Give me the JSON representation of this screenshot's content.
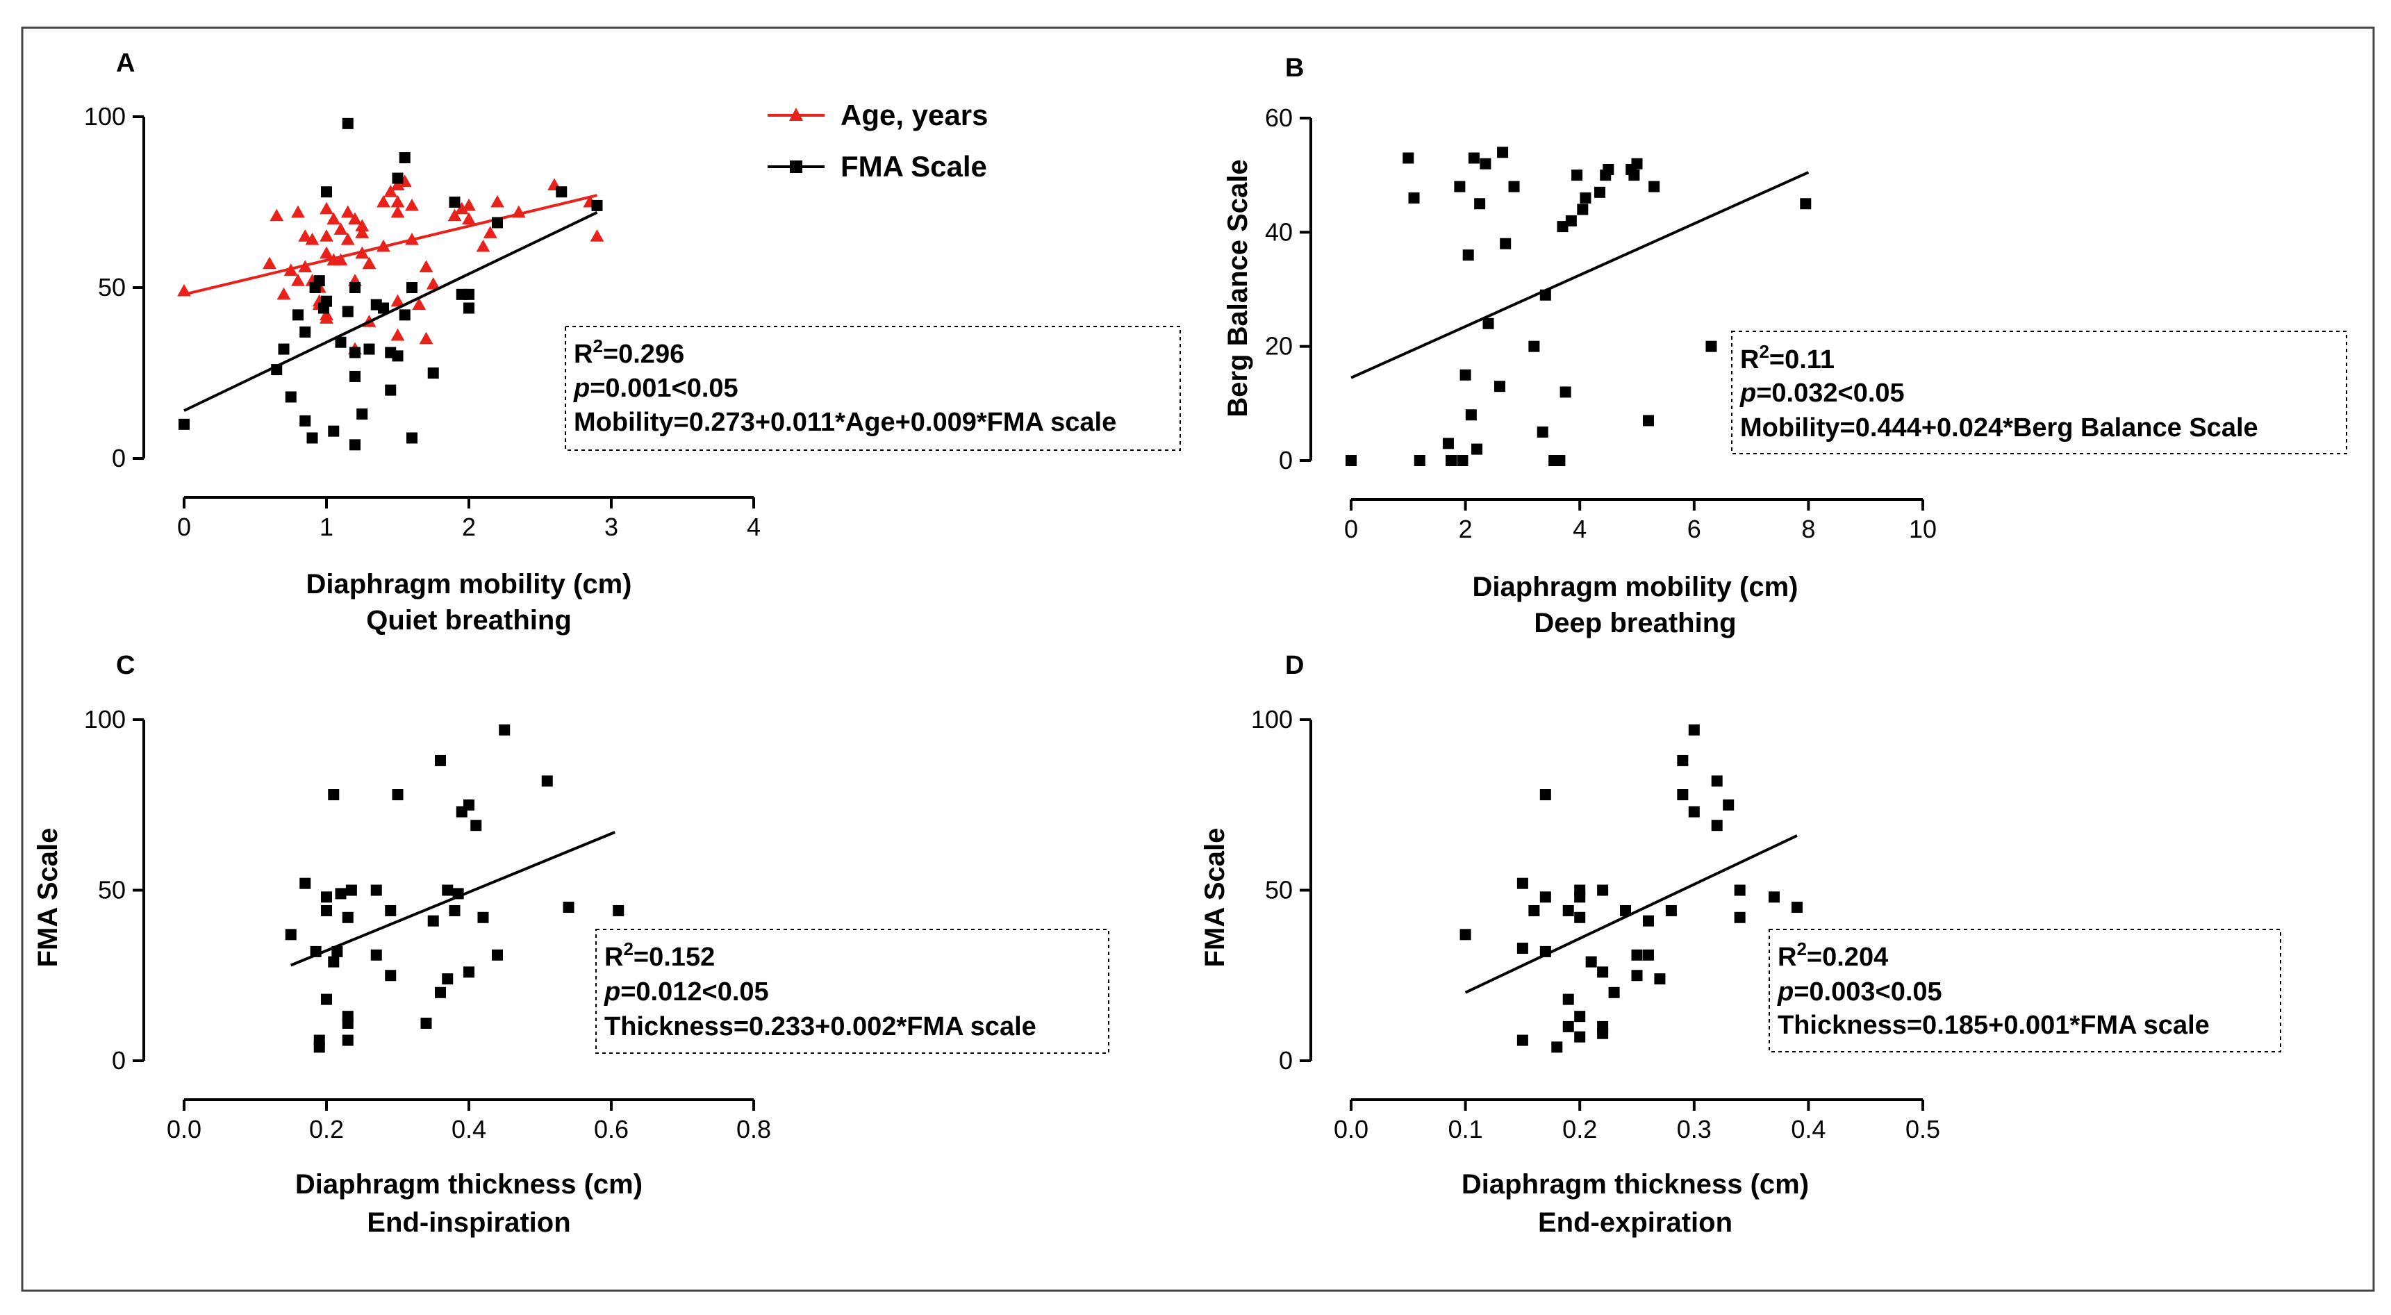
{
  "colors": {
    "red_series": "#e8211b",
    "black_series": "#000000",
    "frame": "#444444"
  },
  "chart_data": [
    {
      "type": "scatter",
      "panel_label": "A",
      "xlabel": "Diaphragm mobility (cm)",
      "xlabel_sub": "Quiet breathing",
      "ylabel": "",
      "xlim": [
        0,
        4
      ],
      "ylim": [
        0,
        100
      ],
      "xticks": [
        "0",
        "1",
        "2",
        "3",
        "4"
      ],
      "xtick_values": [
        0,
        1,
        2,
        3,
        4
      ],
      "yticks": [
        "0",
        "50",
        "100"
      ],
      "ytick_values": [
        0,
        50,
        100
      ],
      "legend": {
        "position": "top-center",
        "entries": [
          "Age, years",
          "FMA Scale"
        ]
      },
      "stats": {
        "r2_label": "R",
        "r2_sup": "2",
        "r2_value": "=0.296",
        "p_italic": "p",
        "p_rest": "=0.001<0.05",
        "equation": "Mobility=0.273+0.011*Age+0.009*FMA scale"
      },
      "series": [
        {
          "name": "Age, years",
          "marker": "triangle",
          "color": "#e8211b",
          "fit": [
            [
              0,
              48
            ],
            [
              2.9,
              77
            ]
          ],
          "points": [
            [
              0,
              49
            ],
            [
              0.6,
              57
            ],
            [
              0.65,
              71
            ],
            [
              0.7,
              48
            ],
            [
              0.75,
              55
            ],
            [
              0.8,
              52
            ],
            [
              0.8,
              72
            ],
            [
              0.85,
              65
            ],
            [
              0.85,
              56
            ],
            [
              0.9,
              64
            ],
            [
              0.9,
              52
            ],
            [
              0.95,
              50
            ],
            [
              0.95,
              46
            ],
            [
              0.95,
              45
            ],
            [
              1.0,
              42
            ],
            [
              1.0,
              41
            ],
            [
              1.0,
              65
            ],
            [
              1.0,
              73
            ],
            [
              1.0,
              60
            ],
            [
              1.05,
              70
            ],
            [
              1.05,
              58
            ],
            [
              1.1,
              58
            ],
            [
              1.1,
              67
            ],
            [
              1.15,
              64
            ],
            [
              1.15,
              72
            ],
            [
              1.2,
              70
            ],
            [
              1.2,
              52
            ],
            [
              1.2,
              32
            ],
            [
              1.25,
              66
            ],
            [
              1.25,
              68
            ],
            [
              1.25,
              60
            ],
            [
              1.3,
              57
            ],
            [
              1.3,
              40
            ],
            [
              1.4,
              75
            ],
            [
              1.4,
              62
            ],
            [
              1.45,
              78
            ],
            [
              1.5,
              72
            ],
            [
              1.5,
              80
            ],
            [
              1.5,
              75
            ],
            [
              1.5,
              36
            ],
            [
              1.5,
              46
            ],
            [
              1.55,
              81
            ],
            [
              1.6,
              74
            ],
            [
              1.6,
              64
            ],
            [
              1.65,
              45
            ],
            [
              1.7,
              56
            ],
            [
              1.7,
              35
            ],
            [
              1.75,
              51
            ],
            [
              1.9,
              71
            ],
            [
              1.95,
              73
            ],
            [
              2.0,
              74
            ],
            [
              2.0,
              70
            ],
            [
              2.1,
              62
            ],
            [
              2.15,
              66
            ],
            [
              2.2,
              75
            ],
            [
              2.35,
              72
            ],
            [
              2.6,
              80
            ],
            [
              2.85,
              75
            ],
            [
              2.9,
              65
            ]
          ]
        },
        {
          "name": "FMA Scale",
          "marker": "square",
          "color": "#000000",
          "fit": [
            [
              0,
              14
            ],
            [
              2.9,
              72
            ]
          ],
          "points": [
            [
              0,
              10
            ],
            [
              0.65,
              26
            ],
            [
              0.7,
              32
            ],
            [
              0.75,
              18
            ],
            [
              0.8,
              42
            ],
            [
              0.85,
              11
            ],
            [
              0.85,
              37
            ],
            [
              0.9,
              6
            ],
            [
              0.92,
              50
            ],
            [
              0.95,
              52
            ],
            [
              0.98,
              44
            ],
            [
              1.0,
              46
            ],
            [
              1.0,
              78
            ],
            [
              1.05,
              8
            ],
            [
              1.1,
              34
            ],
            [
              1.15,
              43
            ],
            [
              1.15,
              98
            ],
            [
              1.2,
              4
            ],
            [
              1.2,
              31
            ],
            [
              1.2,
              24
            ],
            [
              1.2,
              50
            ],
            [
              1.25,
              13
            ],
            [
              1.3,
              32
            ],
            [
              1.35,
              45
            ],
            [
              1.4,
              44
            ],
            [
              1.45,
              20
            ],
            [
              1.45,
              31
            ],
            [
              1.5,
              30
            ],
            [
              1.5,
              82
            ],
            [
              1.55,
              88
            ],
            [
              1.55,
              42
            ],
            [
              1.6,
              6
            ],
            [
              1.6,
              50
            ],
            [
              1.75,
              25
            ],
            [
              1.9,
              75
            ],
            [
              1.95,
              48
            ],
            [
              2.0,
              48
            ],
            [
              2.0,
              44
            ],
            [
              2.2,
              69
            ],
            [
              2.65,
              78
            ],
            [
              2.9,
              74
            ]
          ]
        }
      ]
    },
    {
      "type": "scatter",
      "panel_label": "B",
      "xlabel": "Diaphragm mobility (cm)",
      "xlabel_sub": "Deep breathing",
      "ylabel": "Berg Balance Scale",
      "xlim": [
        0,
        10
      ],
      "ylim": [
        0,
        60
      ],
      "xticks": [
        "0",
        "2",
        "4",
        "6",
        "8",
        "10"
      ],
      "xtick_values": [
        0,
        2,
        4,
        6,
        8,
        10
      ],
      "yticks": [
        "0",
        "20",
        "40",
        "60"
      ],
      "ytick_values": [
        0,
        20,
        40,
        60
      ],
      "stats": {
        "r2_label": "R",
        "r2_sup": "2",
        "r2_value": "=0.11",
        "p_italic": "p",
        "p_rest": "=0.032<0.05",
        "equation": "Mobility=0.444+0.024*Berg Balance Scale"
      },
      "series": [
        {
          "name": "",
          "marker": "square",
          "color": "#000000",
          "fit": [
            [
              0,
              14.5
            ],
            [
              8,
              50.5
            ]
          ],
          "points": [
            [
              0,
              0
            ],
            [
              1,
              53
            ],
            [
              1.1,
              46
            ],
            [
              1.2,
              0
            ],
            [
              1.7,
              3
            ],
            [
              1.75,
              0
            ],
            [
              1.9,
              48
            ],
            [
              1.95,
              0
            ],
            [
              2.0,
              15
            ],
            [
              2.05,
              36
            ],
            [
              2.1,
              8
            ],
            [
              2.15,
              53
            ],
            [
              2.2,
              2
            ],
            [
              2.25,
              45
            ],
            [
              2.35,
              52
            ],
            [
              2.4,
              24
            ],
            [
              2.6,
              13
            ],
            [
              2.65,
              54
            ],
            [
              2.7,
              38
            ],
            [
              2.85,
              48
            ],
            [
              3.2,
              20
            ],
            [
              3.35,
              5
            ],
            [
              3.4,
              29
            ],
            [
              3.55,
              0
            ],
            [
              3.65,
              0
            ],
            [
              3.7,
              41
            ],
            [
              3.75,
              12
            ],
            [
              3.85,
              42
            ],
            [
              3.95,
              50
            ],
            [
              4.05,
              44
            ],
            [
              4.1,
              46
            ],
            [
              4.35,
              47
            ],
            [
              4.45,
              50
            ],
            [
              4.5,
              51
            ],
            [
              4.9,
              51
            ],
            [
              4.95,
              50
            ],
            [
              5.0,
              52
            ],
            [
              5.2,
              7
            ],
            [
              5.3,
              48
            ],
            [
              6.3,
              20
            ],
            [
              7.95,
              45
            ]
          ]
        }
      ]
    },
    {
      "type": "scatter",
      "panel_label": "C",
      "xlabel": "Diaphragm thickness (cm)",
      "xlabel_sub": "End-inspiration",
      "ylabel": "FMA Scale",
      "xlim": [
        0,
        0.8
      ],
      "ylim": [
        0,
        100
      ],
      "xticks": [
        "0.0",
        "0.2",
        "0.4",
        "0.6",
        "0.8"
      ],
      "xtick_values": [
        0,
        0.2,
        0.4,
        0.6,
        0.8
      ],
      "yticks": [
        "0",
        "50",
        "100"
      ],
      "ytick_values": [
        0,
        50,
        100
      ],
      "stats": {
        "r2_label": "R",
        "r2_sup": "2",
        "r2_value": "=0.152",
        "p_italic": "p",
        "p_rest": "=0.012<0.05",
        "equation": "Thickness=0.233+0.002*FMA scale"
      },
      "series": [
        {
          "name": "",
          "marker": "square",
          "color": "#000000",
          "fit": [
            [
              0.15,
              28
            ],
            [
              0.605,
              67
            ]
          ],
          "points": [
            [
              0.15,
              37
            ],
            [
              0.17,
              52
            ],
            [
              0.185,
              32
            ],
            [
              0.19,
              4
            ],
            [
              0.19,
              6
            ],
            [
              0.2,
              18
            ],
            [
              0.2,
              44
            ],
            [
              0.2,
              48
            ],
            [
              0.21,
              29
            ],
            [
              0.21,
              78
            ],
            [
              0.215,
              32
            ],
            [
              0.22,
              49
            ],
            [
              0.23,
              6
            ],
            [
              0.23,
              11
            ],
            [
              0.23,
              13
            ],
            [
              0.23,
              42
            ],
            [
              0.235,
              50
            ],
            [
              0.27,
              50
            ],
            [
              0.27,
              31
            ],
            [
              0.29,
              44
            ],
            [
              0.29,
              25
            ],
            [
              0.3,
              78
            ],
            [
              0.34,
              11
            ],
            [
              0.35,
              41
            ],
            [
              0.36,
              88
            ],
            [
              0.36,
              20
            ],
            [
              0.37,
              50
            ],
            [
              0.37,
              24
            ],
            [
              0.38,
              44
            ],
            [
              0.385,
              49
            ],
            [
              0.39,
              73
            ],
            [
              0.4,
              75
            ],
            [
              0.4,
              26
            ],
            [
              0.41,
              69
            ],
            [
              0.42,
              42
            ],
            [
              0.44,
              31
            ],
            [
              0.45,
              97
            ],
            [
              0.51,
              82
            ],
            [
              0.54,
              45
            ],
            [
              0.61,
              44
            ]
          ]
        }
      ]
    },
    {
      "type": "scatter",
      "panel_label": "D",
      "xlabel": "Diaphragm thickness (cm)",
      "xlabel_sub": "End-expiration",
      "ylabel": "FMA Scale",
      "xlim": [
        0,
        0.5
      ],
      "ylim": [
        0,
        100
      ],
      "xticks": [
        "0.0",
        "0.1",
        "0.2",
        "0.3",
        "0.4",
        "0.5"
      ],
      "xtick_values": [
        0,
        0.1,
        0.2,
        0.3,
        0.4,
        0.5
      ],
      "yticks": [
        "0",
        "50",
        "100"
      ],
      "ytick_values": [
        0,
        50,
        100
      ],
      "stats": {
        "r2_label": "R",
        "r2_sup": "2",
        "r2_value": "=0.204",
        "p_italic": "p",
        "p_rest": "=0.003<0.05",
        "equation": "Thickness=0.185+0.001*FMA scale"
      },
      "series": [
        {
          "name": "",
          "marker": "square",
          "color": "#000000",
          "fit": [
            [
              0.1,
              20
            ],
            [
              0.39,
              66
            ]
          ],
          "points": [
            [
              0.1,
              37
            ],
            [
              0.15,
              6
            ],
            [
              0.15,
              33
            ],
            [
              0.15,
              52
            ],
            [
              0.16,
              44
            ],
            [
              0.17,
              32
            ],
            [
              0.17,
              48
            ],
            [
              0.17,
              78
            ],
            [
              0.18,
              4
            ],
            [
              0.19,
              18
            ],
            [
              0.19,
              10
            ],
            [
              0.19,
              44
            ],
            [
              0.2,
              42
            ],
            [
              0.2,
              7
            ],
            [
              0.2,
              13
            ],
            [
              0.2,
              48
            ],
            [
              0.2,
              50
            ],
            [
              0.21,
              29
            ],
            [
              0.22,
              8
            ],
            [
              0.22,
              10
            ],
            [
              0.22,
              26
            ],
            [
              0.22,
              50
            ],
            [
              0.23,
              20
            ],
            [
              0.24,
              44
            ],
            [
              0.25,
              25
            ],
            [
              0.25,
              31
            ],
            [
              0.26,
              41
            ],
            [
              0.26,
              31
            ],
            [
              0.27,
              24
            ],
            [
              0.28,
              44
            ],
            [
              0.29,
              78
            ],
            [
              0.29,
              88
            ],
            [
              0.3,
              97
            ],
            [
              0.3,
              73
            ],
            [
              0.32,
              82
            ],
            [
              0.32,
              69
            ],
            [
              0.33,
              75
            ],
            [
              0.34,
              42
            ],
            [
              0.34,
              50
            ],
            [
              0.37,
              48
            ],
            [
              0.39,
              45
            ]
          ]
        }
      ]
    }
  ]
}
